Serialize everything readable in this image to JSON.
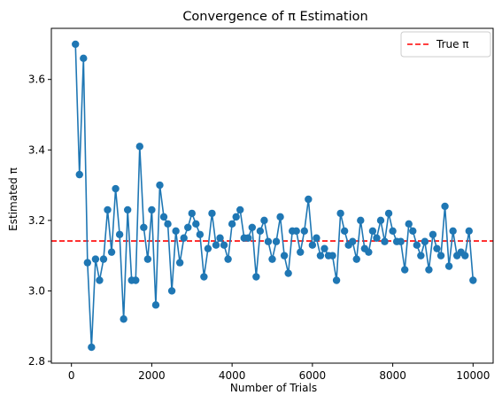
{
  "chart_data": {
    "type": "line",
    "title": "Convergence of π Estimation",
    "xlabel": "Number of Trials",
    "ylabel": "Estimated π",
    "xlim": [
      -500,
      10500
    ],
    "ylim": [
      2.795,
      3.745
    ],
    "xticks": [
      0,
      2000,
      4000,
      6000,
      8000,
      10000
    ],
    "xtick_labels": [
      "0",
      "2000",
      "4000",
      "6000",
      "8000",
      "10000"
    ],
    "yticks": [
      2.8,
      3.0,
      3.2,
      3.4,
      3.6
    ],
    "ytick_labels": [
      "2.8",
      "3.0",
      "3.2",
      "3.4",
      "3.6"
    ],
    "grid": false,
    "legend_position": "top-right",
    "series": [
      {
        "name": "",
        "color": "#1f77b4",
        "marker": "circle",
        "x": [
          100,
          200,
          300,
          400,
          500,
          600,
          700,
          800,
          900,
          1000,
          1100,
          1200,
          1300,
          1400,
          1500,
          1600,
          1700,
          1800,
          1900,
          2000,
          2100,
          2200,
          2300,
          2400,
          2500,
          2600,
          2700,
          2800,
          2900,
          3000,
          3100,
          3200,
          3300,
          3400,
          3500,
          3600,
          3700,
          3800,
          3900,
          4000,
          4100,
          4200,
          4300,
          4400,
          4500,
          4600,
          4700,
          4800,
          4900,
          5000,
          5100,
          5200,
          5300,
          5400,
          5500,
          5600,
          5700,
          5800,
          5900,
          6000,
          6100,
          6200,
          6300,
          6400,
          6500,
          6600,
          6700,
          6800,
          6900,
          7000,
          7100,
          7200,
          7300,
          7400,
          7500,
          7600,
          7700,
          7800,
          7900,
          8000,
          8100,
          8200,
          8300,
          8400,
          8500,
          8600,
          8700,
          8800,
          8900,
          9000,
          9100,
          9200,
          9300,
          9400,
          9500,
          9600,
          9700,
          9800,
          9900,
          10000
        ],
        "y": [
          3.7,
          3.33,
          3.66,
          3.08,
          2.84,
          3.09,
          3.03,
          3.09,
          3.23,
          3.11,
          3.29,
          3.16,
          2.92,
          3.23,
          3.03,
          3.03,
          3.41,
          3.18,
          3.09,
          3.23,
          2.96,
          3.3,
          3.21,
          3.19,
          3.0,
          3.17,
          3.08,
          3.15,
          3.18,
          3.22,
          3.19,
          3.16,
          3.04,
          3.12,
          3.22,
          3.13,
          3.15,
          3.13,
          3.09,
          3.19,
          3.21,
          3.23,
          3.15,
          3.15,
          3.18,
          3.04,
          3.17,
          3.2,
          3.14,
          3.09,
          3.14,
          3.21,
          3.1,
          3.05,
          3.17,
          3.17,
          3.11,
          3.17,
          3.26,
          3.13,
          3.15,
          3.1,
          3.12,
          3.1,
          3.1,
          3.03,
          3.22,
          3.17,
          3.13,
          3.14,
          3.09,
          3.2,
          3.12,
          3.11,
          3.17,
          3.15,
          3.2,
          3.14,
          3.22,
          3.17,
          3.14,
          3.14,
          3.06,
          3.19,
          3.17,
          3.13,
          3.1,
          3.14,
          3.06,
          3.16,
          3.12,
          3.1,
          3.24,
          3.07,
          3.17,
          3.1,
          3.11,
          3.1,
          3.17,
          3.03
        ]
      }
    ],
    "reference_line": {
      "name": "True π",
      "value": 3.141592653589793,
      "color": "#ff0000",
      "style": "dashed"
    }
  }
}
